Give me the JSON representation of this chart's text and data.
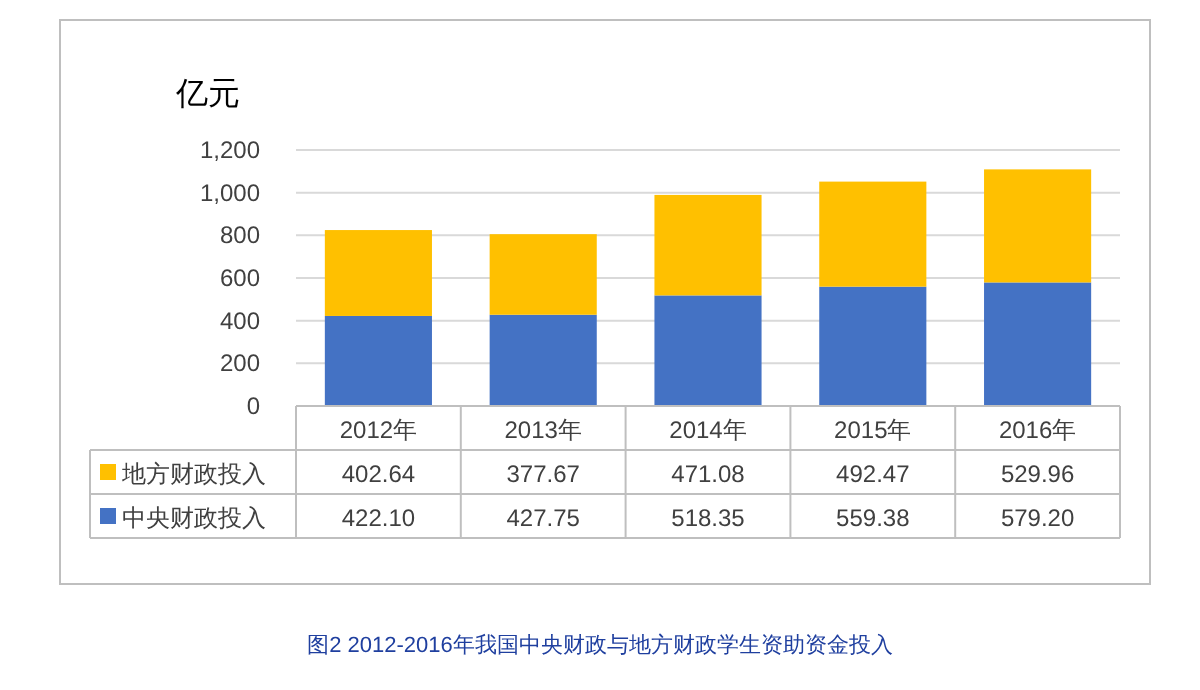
{
  "chart_data": {
    "type": "bar",
    "stacked": true,
    "ylabel": "亿元",
    "categories": [
      "2012年",
      "2013年",
      "2014年",
      "2015年",
      "2016年"
    ],
    "series": [
      {
        "name": "中央财政投入",
        "color": "#4472c4",
        "values": [
          422.1,
          427.75,
          518.35,
          559.38,
          579.2
        ],
        "value_labels": [
          "422.10",
          "427.75",
          "518.35",
          "559.38",
          "579.20"
        ]
      },
      {
        "name": "地方财政投入",
        "color": "#ffc000",
        "values": [
          402.64,
          377.67,
          471.08,
          492.47,
          529.96
        ],
        "value_labels": [
          "402.64",
          "377.67",
          "471.08",
          "492.47",
          "529.96"
        ]
      }
    ],
    "ylim": [
      0,
      1200
    ],
    "yticks": [
      0,
      200,
      400,
      600,
      800,
      {
        "value": 1000,
        "label": "1,000"
      },
      {
        "value": 1200,
        "label": "1,200"
      }
    ],
    "grid": "y",
    "legend": "bottom",
    "annotations": [
      "图2 2012-2016年我国中央财政与地方财政学生资助资金投入"
    ]
  }
}
